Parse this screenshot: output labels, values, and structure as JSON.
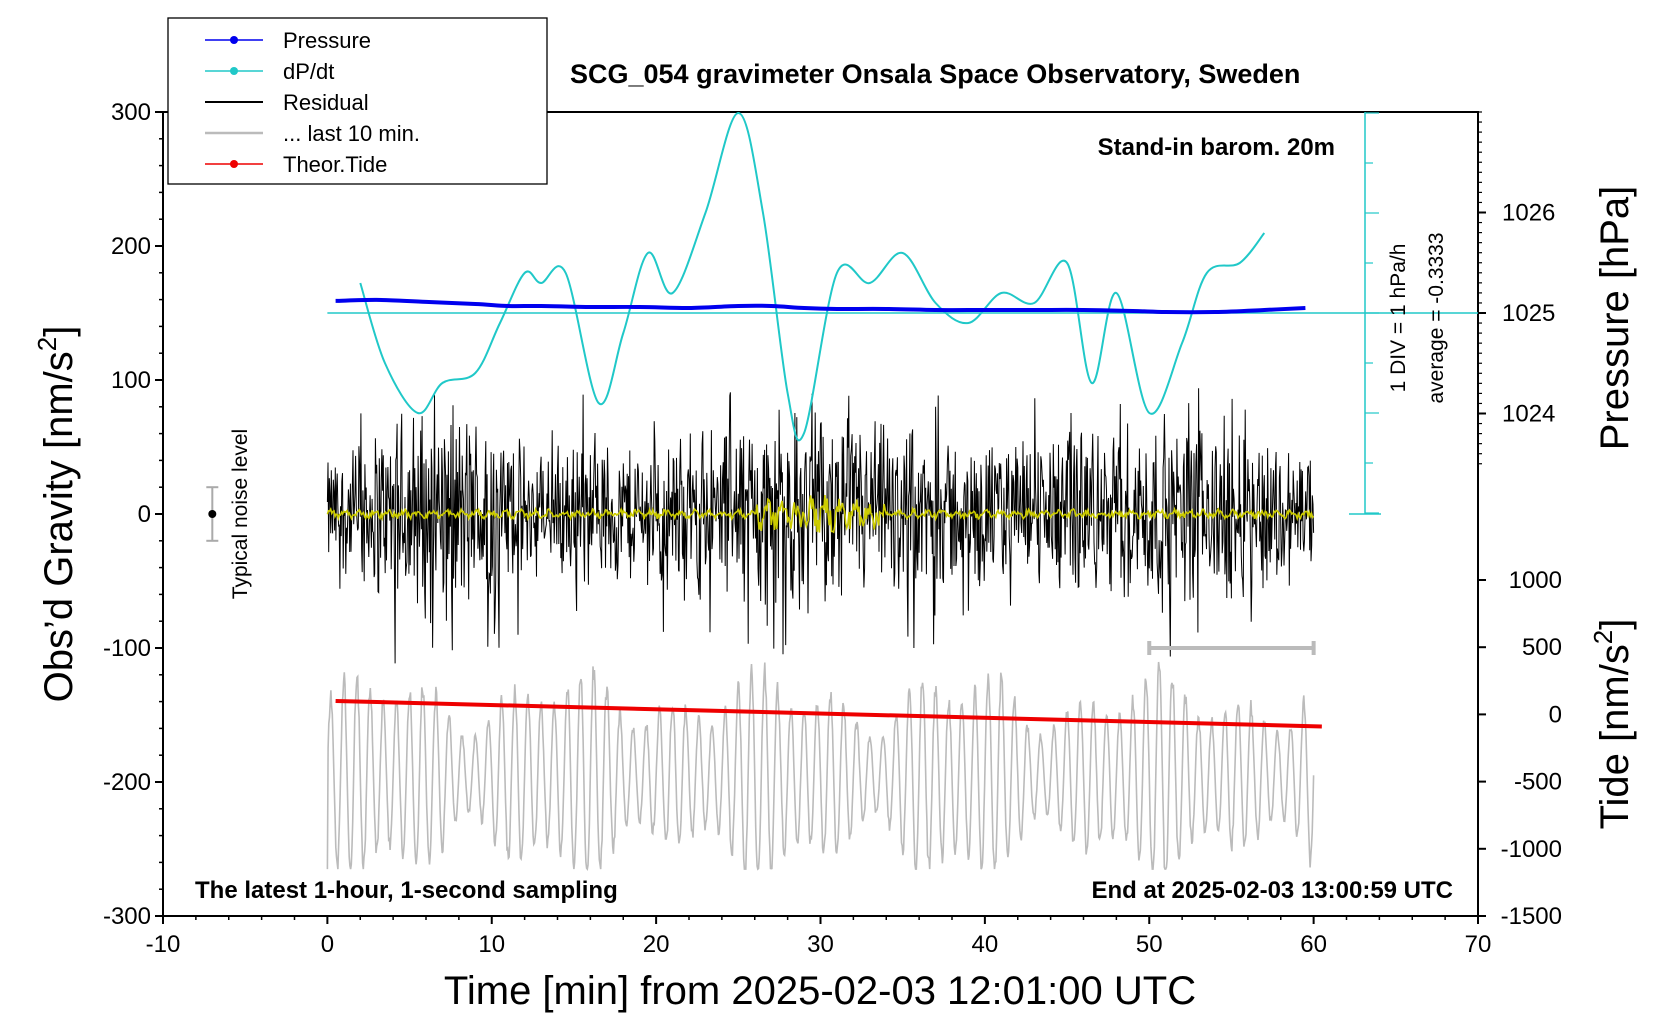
{
  "chart_data": {
    "type": "line",
    "title": "SCG_054 gravimeter Onsala Space Observatory, Sweden",
    "xlabel": "Time [min] from 2025-02-03 12:01:00 UTC",
    "ylabel": "Obs’d Gravity [nm/s2]",
    "ylabel_main": "Obs’d Gravity [nm/s",
    "ylabel_sup": "2",
    "ylabel_end": "]",
    "xlim": [
      -10,
      70
    ],
    "ylim": [
      -300,
      300
    ],
    "xticks": [
      "-10",
      "0",
      "10",
      "20",
      "30",
      "40",
      "50",
      "60",
      "70"
    ],
    "yticks": [
      "300",
      "200",
      "100",
      "0",
      "-100",
      "-200",
      "-300"
    ],
    "pressure_axis": {
      "label": "Pressure [hPa]",
      "ticks": [
        "1026",
        "1025",
        "1024"
      ],
      "range": [
        1023,
        1027
      ]
    },
    "tide_axis": {
      "label_main": "Tide [nm/s",
      "label_sup": "2",
      "label_end": "]",
      "ticks": [
        "1000",
        "500",
        "0",
        "-500",
        "-1000",
        "-1500"
      ],
      "range": [
        -1500,
        1000
      ]
    },
    "dpdt_scale": {
      "label": "1 DIV = 1 hPa/h",
      "average": "average = -0.3333"
    },
    "legend": [
      {
        "name": "Pressure",
        "color": "#0000ee",
        "marker": true
      },
      {
        "name": "dP/dt",
        "color": "#20c8c8",
        "marker": true
      },
      {
        "name": "Residual",
        "color": "#000000",
        "marker": false
      },
      {
        "name": "... last 10 min.",
        "color": "#bbbbbb",
        "marker": false
      },
      {
        "name": "Theor.Tide",
        "color": "#ee0000",
        "marker": true
      }
    ],
    "annotations": {
      "barometer": "Stand-in barom. 20m",
      "noise": "Typical noise level",
      "sampling": "The latest 1-hour, 1-second sampling",
      "end_time": "End at 2025-02-03 13:00:59 UTC"
    },
    "noise_bar": {
      "x": -7,
      "center": 0,
      "half_range": 20
    },
    "last10_bracket": {
      "x_start": 50,
      "x_end": 60,
      "gravity": -100
    },
    "series": [
      {
        "name": "Pressure",
        "unit": "hPa",
        "x": [
          0.5,
          3,
          6,
          9,
          11,
          13,
          16,
          19,
          22,
          25,
          27,
          29,
          31,
          34,
          37,
          40,
          43,
          46,
          49,
          51,
          54,
          57,
          59.5
        ],
        "values": [
          1025.12,
          1025.13,
          1025.11,
          1025.09,
          1025.07,
          1025.07,
          1025.06,
          1025.06,
          1025.05,
          1025.07,
          1025.07,
          1025.05,
          1025.04,
          1025.04,
          1025.03,
          1025.03,
          1025.03,
          1025.03,
          1025.02,
          1025.01,
          1025.01,
          1025.03,
          1025.05
        ]
      },
      {
        "name": "dP/dt",
        "unit": "hPa/h from zero line",
        "x": [
          2,
          3.5,
          5.5,
          7,
          9,
          10.5,
          12,
          13,
          14.5,
          16.5,
          18,
          19.5,
          21,
          23,
          25,
          26.5,
          28,
          29,
          31,
          33,
          35,
          37,
          39,
          41,
          43,
          45,
          46.5,
          48,
          50,
          52,
          53.5,
          55.5,
          57
        ],
        "values": [
          0.3,
          -0.5,
          -1.0,
          -0.7,
          -0.6,
          -0.1,
          0.4,
          0.3,
          0.4,
          -0.9,
          -0.2,
          0.6,
          0.2,
          1.0,
          2.0,
          1.0,
          -0.8,
          -1.2,
          0.4,
          0.3,
          0.6,
          0.1,
          -0.1,
          0.2,
          0.1,
          0.5,
          -0.7,
          0.2,
          -1.0,
          -0.3,
          0.4,
          0.5,
          0.8
        ]
      },
      {
        "name": "Residual",
        "unit": "nm/s2",
        "x": [
          0,
          60
        ],
        "envelope": [
          [
            0,
            45
          ],
          [
            5,
            90
          ],
          [
            9,
            85
          ],
          [
            12,
            60
          ],
          [
            20,
            60
          ],
          [
            27,
            90
          ],
          [
            32,
            80
          ],
          [
            40,
            60
          ],
          [
            50,
            80
          ],
          [
            55,
            75
          ],
          [
            60,
            55
          ]
        ],
        "min": -120,
        "max": 115
      },
      {
        "name": "... last 10 min.",
        "unit": "nm/s2",
        "x": [
          0,
          60
        ],
        "center": -215,
        "amplitude_range": [
          30,
          90
        ],
        "min": -265,
        "max": -90
      },
      {
        "name": "Theor.Tide",
        "unit": "nm/s2 on tide axis",
        "x": [
          0.5,
          60.5
        ],
        "values": [
          100,
          -90
        ]
      }
    ]
  }
}
